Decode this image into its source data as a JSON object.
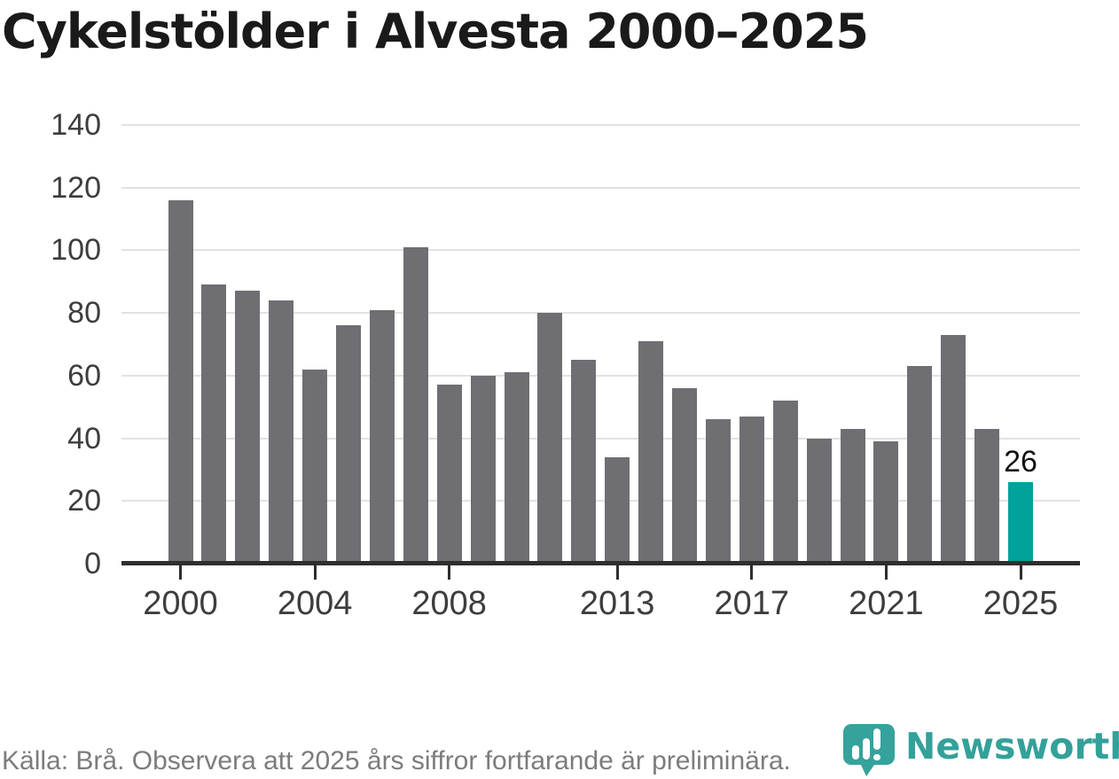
{
  "title": "Cykelstölder i Alvesta 2000–2025",
  "source_note": "Källa: Brå. Observera att 2025 års siffror fortfarande är preliminära.",
  "branding": {
    "wordmark": "Newsworthy",
    "logo_icon": "newsworthy-pin-barchart-logo"
  },
  "colors": {
    "bar": "#6e6e73",
    "highlight_bar": "#00a29b",
    "brand_teal": "#33a19a",
    "grid": "#e2e2e2",
    "axis": "#2e2e2e",
    "title_text": "#1a1a1a",
    "axis_label_text": "#3d3d3d",
    "source_text": "#7c7c7c",
    "value_label_text": "#111111"
  },
  "chart_data": {
    "type": "bar",
    "title": "Cykelstölder i Alvesta 2000–2025",
    "xlabel": "",
    "ylabel": "",
    "ylim": [
      0,
      140
    ],
    "yticks": [
      0,
      20,
      40,
      60,
      80,
      100,
      120,
      140
    ],
    "xtick_years": [
      2000,
      2004,
      2008,
      2013,
      2017,
      2021,
      2025
    ],
    "grid": "horizontal",
    "legend": "none",
    "highlight_year": 2025,
    "highlight_value_label": "26",
    "categories": [
      2000,
      2001,
      2002,
      2003,
      2004,
      2005,
      2006,
      2007,
      2008,
      2009,
      2010,
      2011,
      2012,
      2013,
      2014,
      2015,
      2016,
      2017,
      2018,
      2019,
      2020,
      2021,
      2022,
      2023,
      2024,
      2025
    ],
    "values": [
      116,
      89,
      87,
      84,
      62,
      76,
      81,
      101,
      57,
      60,
      61,
      80,
      65,
      34,
      71,
      56,
      46,
      47,
      52,
      40,
      43,
      39,
      63,
      73,
      43,
      26
    ]
  }
}
